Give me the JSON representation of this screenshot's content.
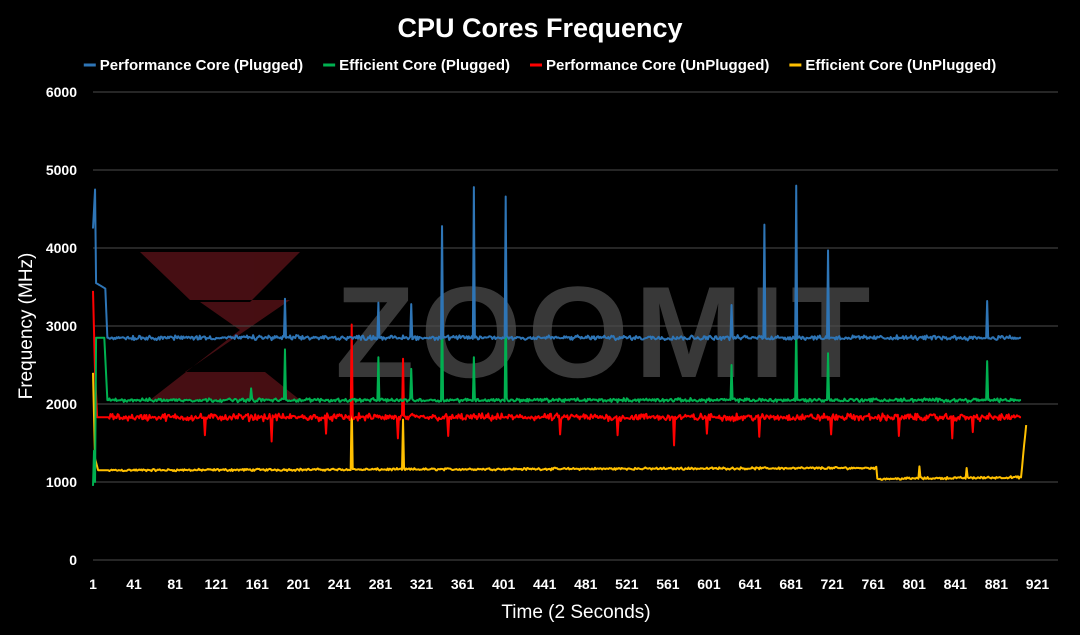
{
  "watermark": {
    "text": "ZOOMIT",
    "mark_color": "#4a0f14"
  },
  "chart_data": {
    "type": "line",
    "title": "CPU Cores Frequency",
    "xlabel": "Time (2 Seconds)",
    "ylabel": "Frequency (MHz)",
    "xlim": [
      1,
      941
    ],
    "ylim": [
      0,
      6000
    ],
    "x_ticks": [
      1,
      41,
      81,
      121,
      161,
      201,
      241,
      281,
      321,
      361,
      401,
      441,
      481,
      521,
      561,
      601,
      641,
      681,
      721,
      761,
      801,
      841,
      881,
      921
    ],
    "y_ticks": [
      0,
      1000,
      2000,
      3000,
      4000,
      5000,
      6000
    ],
    "grid": "horizontal",
    "legend_position": "top",
    "series": [
      {
        "name": "Performance Core (Plugged)",
        "color": "#2e75b6",
        "baseline": 2850,
        "noise": 35,
        "points": [
          [
            1,
            4250
          ],
          [
            3,
            4750
          ],
          [
            4,
            3550
          ],
          [
            8,
            3520
          ],
          [
            13,
            3480
          ],
          [
            15,
            2850
          ],
          [
            905,
            2850
          ]
        ],
        "spikes": [
          [
            188,
            3350
          ],
          [
            279,
            3300
          ],
          [
            311,
            3280
          ],
          [
            341,
            4280
          ],
          [
            372,
            4780
          ],
          [
            403,
            4660
          ],
          [
            623,
            3270
          ],
          [
            655,
            4300
          ],
          [
            686,
            4800
          ],
          [
            717,
            3970
          ],
          [
            872,
            3320
          ]
        ]
      },
      {
        "name": "Efficient Core (Plugged)",
        "color": "#00b050",
        "baseline": 2050,
        "noise": 28,
        "points": [
          [
            1,
            950
          ],
          [
            2,
            1400
          ],
          [
            3,
            1000
          ],
          [
            4,
            2850
          ],
          [
            12,
            2850
          ],
          [
            15,
            2050
          ],
          [
            905,
            2050
          ]
        ],
        "spikes": [
          [
            155,
            2200
          ],
          [
            188,
            2700
          ],
          [
            279,
            2600
          ],
          [
            311,
            2450
          ],
          [
            341,
            3400
          ],
          [
            372,
            2600
          ],
          [
            403,
            3350
          ],
          [
            623,
            2500
          ],
          [
            686,
            3050
          ],
          [
            717,
            2650
          ],
          [
            872,
            2550
          ]
        ]
      },
      {
        "name": "Performance Core (UnPlugged)",
        "color": "#ff0000",
        "baseline": 1830,
        "noise": 55,
        "points": [
          [
            1,
            3450
          ],
          [
            3,
            2400
          ],
          [
            5,
            1830
          ],
          [
            905,
            1830
          ]
        ],
        "spikes": [
          [
            253,
            3020
          ],
          [
            303,
            2580
          ]
        ],
        "dips": [
          [
            110,
            1600
          ],
          [
            175,
            1520
          ],
          [
            228,
            1620
          ],
          [
            298,
            1560
          ],
          [
            347,
            1590
          ],
          [
            456,
            1610
          ],
          [
            512,
            1600
          ],
          [
            567,
            1470
          ],
          [
            599,
            1620
          ],
          [
            650,
            1580
          ],
          [
            720,
            1610
          ],
          [
            786,
            1590
          ],
          [
            838,
            1560
          ],
          [
            858,
            1640
          ]
        ]
      },
      {
        "name": "Efficient Core (UnPlugged)",
        "color": "#ffc000",
        "baseline": 1180,
        "noise": 18,
        "points": [
          [
            1,
            2400
          ],
          [
            3,
            1300
          ],
          [
            6,
            1150
          ],
          [
            764,
            1180
          ],
          [
            765,
            1040
          ],
          [
            905,
            1060
          ],
          [
            910,
            1730
          ]
        ],
        "spikes": [
          [
            253,
            2050
          ],
          [
            303,
            1800
          ],
          [
            806,
            1200
          ],
          [
            852,
            1180
          ]
        ]
      }
    ]
  }
}
